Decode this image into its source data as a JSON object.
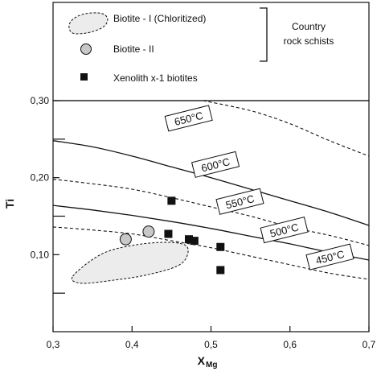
{
  "chart_data": {
    "type": "scatter",
    "xlabel": "X",
    "xlabel_sub": "Mg",
    "ylabel": "Ti",
    "xlim": [
      0.3,
      0.7
    ],
    "ylim": [
      0.0,
      0.3
    ],
    "x_ticks": [
      {
        "value": 0.3,
        "label": "0,3"
      },
      {
        "value": 0.4,
        "label": "0,4"
      },
      {
        "value": 0.5,
        "label": "0,5"
      },
      {
        "value": 0.6,
        "label": "0,6"
      },
      {
        "value": 0.7,
        "label": "0,7"
      }
    ],
    "y_ticks": [
      {
        "value": 0.1,
        "label": "0,10"
      },
      {
        "value": 0.2,
        "label": "0,20"
      },
      {
        "value": 0.3,
        "label": "0,30"
      }
    ],
    "y_minor_ticks": [
      0.05,
      0.15,
      0.25
    ],
    "legend": {
      "entries": [
        {
          "label": "Biotite - I (Chloritized)",
          "marker": "dashed-field"
        },
        {
          "label": "Biotite - II",
          "marker": "circle"
        },
        {
          "label": "Xenolith x-1 biotites",
          "marker": "square"
        }
      ],
      "bracket_label_line1": "Country",
      "bracket_label_line2": "rock schists"
    },
    "series": [
      {
        "name": "Biotite - II",
        "marker": "circle",
        "color": "#c8c8c8",
        "points": [
          [
            0.392,
            0.12
          ],
          [
            0.421,
            0.13
          ]
        ]
      },
      {
        "name": "Xenolith x-1 biotites",
        "marker": "square",
        "color": "#111111",
        "points": [
          [
            0.45,
            0.17
          ],
          [
            0.446,
            0.127
          ],
          [
            0.472,
            0.12
          ],
          [
            0.479,
            0.118
          ],
          [
            0.512,
            0.11
          ],
          [
            0.512,
            0.08
          ]
        ]
      }
    ],
    "biotite_I_field": [
      [
        0.325,
        0.072
      ],
      [
        0.36,
        0.1
      ],
      [
        0.4,
        0.112
      ],
      [
        0.445,
        0.116
      ],
      [
        0.47,
        0.11
      ],
      [
        0.462,
        0.088
      ],
      [
        0.42,
        0.074
      ],
      [
        0.37,
        0.066
      ],
      [
        0.335,
        0.063
      ]
    ],
    "isotherms": [
      {
        "label": "650°C",
        "style": "dashed",
        "points": [
          [
            0.49,
            0.3
          ],
          [
            0.55,
            0.287
          ],
          [
            0.6,
            0.27
          ],
          [
            0.65,
            0.248
          ],
          [
            0.7,
            0.228
          ]
        ],
        "label_at": [
          0.444,
          0.27
        ]
      },
      {
        "label": "600°C",
        "style": "solid",
        "points": [
          [
            0.3,
            0.248
          ],
          [
            0.35,
            0.24
          ],
          [
            0.4,
            0.228
          ],
          [
            0.45,
            0.214
          ],
          [
            0.5,
            0.2
          ],
          [
            0.55,
            0.185
          ],
          [
            0.6,
            0.17
          ],
          [
            0.65,
            0.155
          ],
          [
            0.7,
            0.138
          ]
        ],
        "label_at": [
          0.478,
          0.21
        ]
      },
      {
        "label": "550°C",
        "style": "dashed",
        "points": [
          [
            0.3,
            0.198
          ],
          [
            0.35,
            0.192
          ],
          [
            0.4,
            0.185
          ],
          [
            0.45,
            0.174
          ],
          [
            0.5,
            0.162
          ],
          [
            0.55,
            0.15
          ],
          [
            0.6,
            0.136
          ],
          [
            0.65,
            0.125
          ],
          [
            0.7,
            0.112
          ]
        ],
        "label_at": [
          0.509,
          0.162
        ]
      },
      {
        "label": "500°C",
        "style": "solid",
        "points": [
          [
            0.3,
            0.164
          ],
          [
            0.35,
            0.158
          ],
          [
            0.4,
            0.151
          ],
          [
            0.45,
            0.143
          ],
          [
            0.5,
            0.134
          ],
          [
            0.55,
            0.124
          ],
          [
            0.6,
            0.114
          ],
          [
            0.65,
            0.103
          ],
          [
            0.7,
            0.093
          ]
        ],
        "label_at": [
          0.565,
          0.125
        ]
      },
      {
        "label": "450°C",
        "style": "dashed",
        "points": [
          [
            0.3,
            0.136
          ],
          [
            0.35,
            0.132
          ],
          [
            0.4,
            0.127
          ],
          [
            0.45,
            0.118
          ],
          [
            0.5,
            0.109
          ],
          [
            0.55,
            0.098
          ],
          [
            0.6,
            0.087
          ],
          [
            0.65,
            0.076
          ],
          [
            0.7,
            0.068
          ]
        ],
        "label_at": [
          0.623,
          0.09
        ]
      }
    ],
    "grid": false
  }
}
